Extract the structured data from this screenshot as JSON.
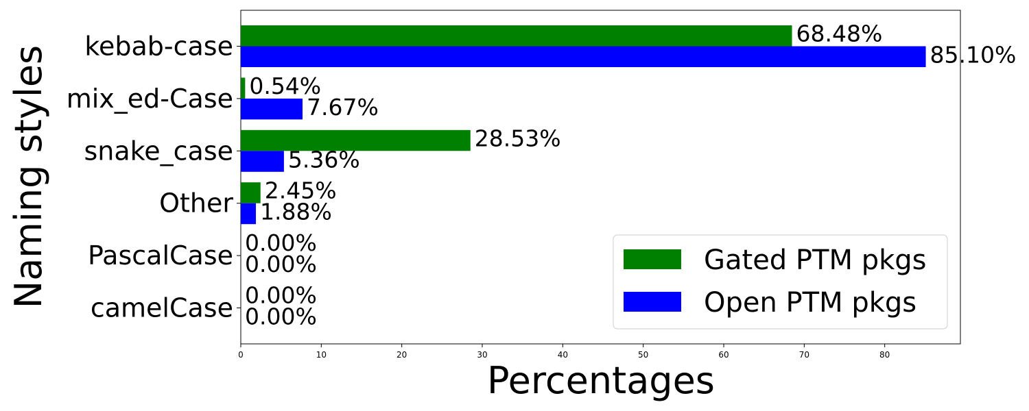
{
  "chart_data": {
    "type": "bar",
    "orientation": "horizontal",
    "categories": [
      "kebab-case",
      "mix_ed-Case",
      "snake_case",
      "Other",
      "PascalCase",
      "camelCase"
    ],
    "series": [
      {
        "name": "Gated PTM pkgs",
        "color": "#008000",
        "values": [
          68.48,
          0.54,
          28.53,
          2.45,
          0.0,
          0.0
        ],
        "labels": [
          "68.48%",
          "0.54%",
          "28.53%",
          "2.45%",
          "0.00%",
          "0.00%"
        ]
      },
      {
        "name": "Open PTM pkgs",
        "color": "#0000ff",
        "values": [
          85.1,
          7.67,
          5.36,
          1.88,
          0.0,
          0.0
        ],
        "labels": [
          "85.10%",
          "7.67%",
          "5.36%",
          "1.88%",
          "0.00%",
          "0.00%"
        ]
      }
    ],
    "xlabel": "Percentages",
    "ylabel": "Naming styles",
    "xlim": [
      0,
      89.4
    ],
    "xticks": [
      0,
      10,
      20,
      30,
      40,
      50,
      60,
      70,
      80
    ],
    "grid": false,
    "legend_position": "lower-right"
  }
}
